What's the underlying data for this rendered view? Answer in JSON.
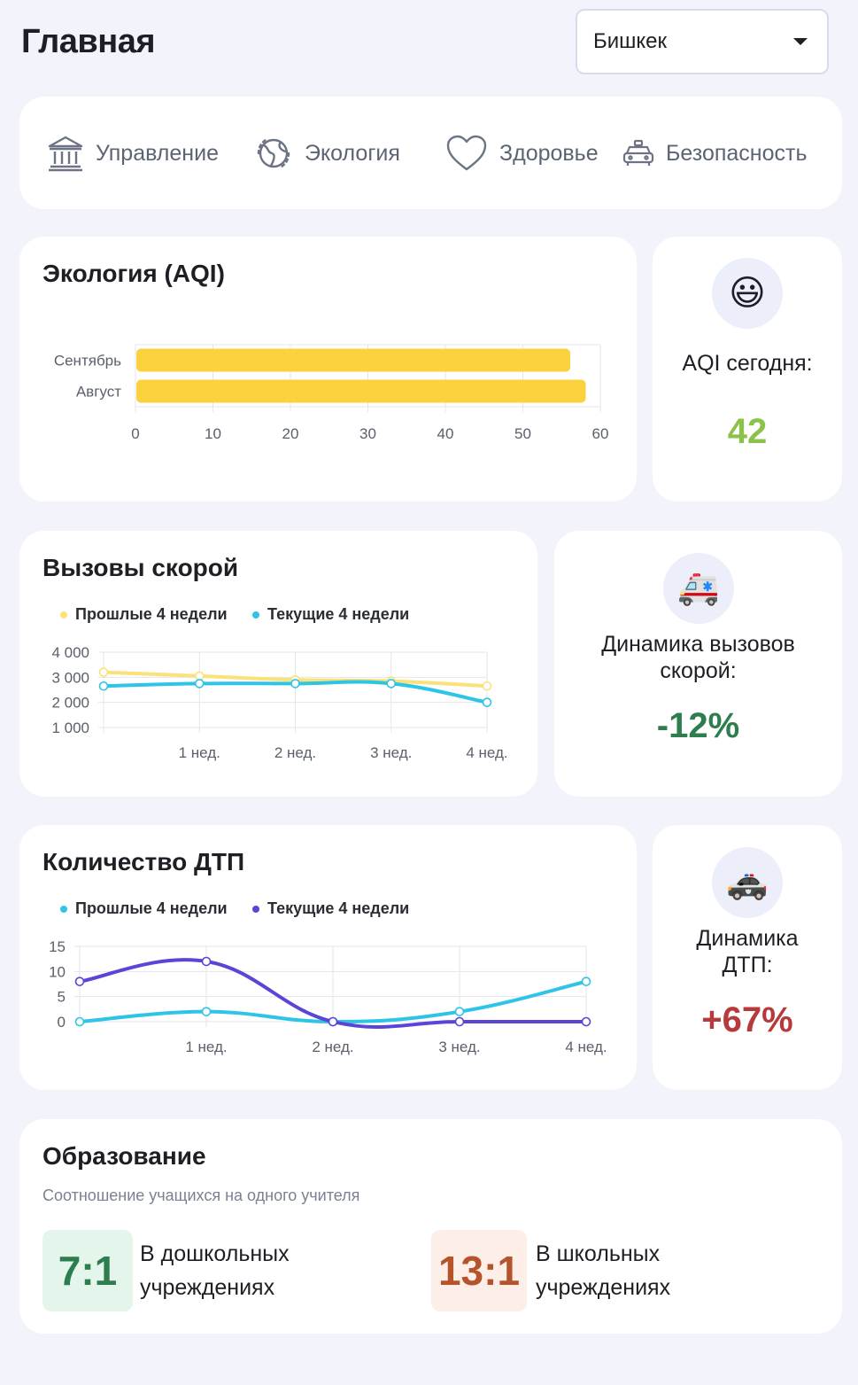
{
  "header": {
    "title": "Главная",
    "city": "Бишкек"
  },
  "nav": {
    "items": [
      {
        "label": "Управление",
        "icon": "government-building-icon"
      },
      {
        "label": "Экология",
        "icon": "globe-icon"
      },
      {
        "label": "Здоровье",
        "icon": "heart-icon"
      },
      {
        "label": "Безопасность",
        "icon": "taxi-car-icon"
      }
    ]
  },
  "ecology": {
    "title": "Экология (AQI)",
    "today_label": "AQI сегодня:",
    "today_value": "42",
    "today_emoji": "😃",
    "value_color": "#8bc34a"
  },
  "ambulance": {
    "title": "Вызовы скорой",
    "dynamics_label": "Динамика вызовов скорой:",
    "dynamics_value": "-12%",
    "emoji": "🚑",
    "value_color": "#2e7d4f"
  },
  "accidents": {
    "title": "Количество ДТП",
    "dynamics_label": "Динамика ДТП:",
    "dynamics_value": "+67%",
    "emoji": "🚓",
    "value_color": "#b73a3a"
  },
  "education": {
    "title": "Образование",
    "subtitle": "Соотношение учащихся на одного учителя",
    "preschool_ratio": "7:1",
    "preschool_label_line1": "В дошкольных",
    "preschool_label_line2": "учреждениях",
    "school_ratio": "13:1",
    "school_label_line1": "В школьных",
    "school_label_line2": "учреждениях"
  },
  "chart_data": [
    {
      "type": "bar",
      "orientation": "horizontal",
      "categories": [
        "Сентябрь",
        "Август"
      ],
      "values": [
        56,
        58
      ],
      "xlim": [
        0,
        60
      ],
      "xticks": [
        "0",
        "10",
        "20",
        "30",
        "40",
        "50",
        "60"
      ],
      "color": "#fbd23e",
      "grid": true
    },
    {
      "type": "line",
      "x": [
        "",
        "1 нед.",
        "2 нед.",
        "3 нед.",
        "4 нед."
      ],
      "series": [
        {
          "name": "Прошлые 4 недели",
          "values": [
            3200,
            3050,
            2900,
            2850,
            2650
          ],
          "color": "#fbe17a"
        },
        {
          "name": "Текущие 4 недели",
          "values": [
            2650,
            2750,
            2750,
            2750,
            2000
          ],
          "color": "#2ec4e6"
        }
      ],
      "ylim": [
        1000,
        4000
      ],
      "yticks": [
        "4 000",
        "3 000",
        "2 000",
        "1 000"
      ],
      "grid": true,
      "legend": "top-left"
    },
    {
      "type": "line",
      "x": [
        "",
        "1 нед.",
        "2 нед.",
        "3 нед.",
        "4 нед."
      ],
      "series": [
        {
          "name": "Прошлые 4 недели",
          "values": [
            0,
            2,
            0,
            2,
            8
          ],
          "color": "#2ec4e6"
        },
        {
          "name": "Текущие 4 недели",
          "values": [
            8,
            12,
            0,
            0,
            0
          ],
          "color": "#5b45d6"
        }
      ],
      "ylim": [
        0,
        15
      ],
      "yticks": [
        "15",
        "10",
        "5",
        "0"
      ],
      "grid": true,
      "legend": "top-left"
    }
  ]
}
